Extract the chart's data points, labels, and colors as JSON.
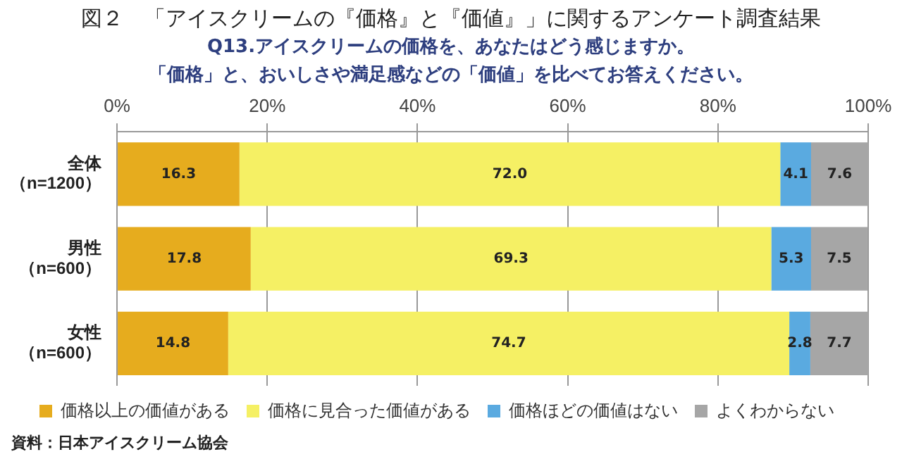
{
  "chart_data": {
    "type": "bar",
    "orientation": "horizontal",
    "stacked": true,
    "title": "図２　「アイスクリームの『価格』と『価値』」に関するアンケート調査結果",
    "subtitle": "Q13.アイスクリームの価格を、あなたはどう感じますか。「価格」と、おいしさや満足感などの「価値」を比べてお答えください。",
    "categories": [
      "全体（n=1200）",
      "男性（n=600）",
      "女性（n=600）"
    ],
    "series": [
      {
        "name": "価格以上の価値がある",
        "color": "#e6ac1e",
        "values": [
          16.3,
          17.8,
          14.8
        ]
      },
      {
        "name": "価格に見合った価値がある",
        "color": "#f5f064",
        "values": [
          72.0,
          69.3,
          74.7
        ]
      },
      {
        "name": "価格ほどの価値はない",
        "color": "#5aaae0",
        "values": [
          4.1,
          5.3,
          2.8
        ]
      },
      {
        "name": "よくわからない",
        "color": "#a6a6a6",
        "values": [
          7.6,
          7.5,
          7.7
        ]
      }
    ],
    "value_labels": [
      [
        "16.3",
        "17.8",
        "14.8"
      ],
      [
        "72.0",
        "69.3",
        "74.7"
      ],
      [
        "4.1",
        "5.3",
        "2.8"
      ],
      [
        "7.6",
        "7.5",
        "7.7"
      ]
    ],
    "xlim": [
      0,
      100
    ],
    "xticks": [
      {
        "value": 0,
        "label": "0%"
      },
      {
        "value": 20,
        "label": "20%"
      },
      {
        "value": 40,
        "label": "40%"
      },
      {
        "value": 60,
        "label": "60%"
      },
      {
        "value": 80,
        "label": "80%"
      },
      {
        "value": 100,
        "label": "100%"
      }
    ],
    "grid": "x",
    "legend": "bottom",
    "annotations": [
      "資料：日本アイスクリーム協会"
    ]
  }
}
